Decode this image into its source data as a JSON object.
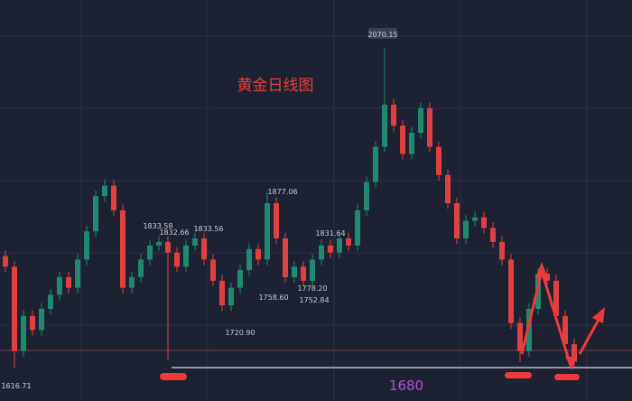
{
  "chart_data": {
    "type": "candlestick",
    "title": "黄金日线图",
    "open": [
      1775,
      1760,
      1640,
      1690,
      1670,
      1700,
      1720,
      1745,
      1730,
      1770,
      1810,
      1860,
      1875,
      1840,
      1730,
      1745,
      1770,
      1790,
      1795,
      1780,
      1760,
      1790,
      1800,
      1770,
      1740,
      1705,
      1730,
      1755,
      1785,
      1770,
      1850,
      1800,
      1745,
      1760,
      1740,
      1770,
      1790,
      1780,
      1800,
      1790,
      1840,
      1880,
      1930,
      1990,
      1960,
      1920,
      1950,
      1985,
      1930,
      1890,
      1850,
      1800,
      1825,
      1830,
      1815,
      1795,
      1770,
      1680,
      1640,
      1700,
      1750,
      1740,
      1690,
      1650
    ],
    "high": [
      1783,
      1768,
      1698,
      1698,
      1708,
      1728,
      1753,
      1753,
      1778,
      1818,
      1868,
      1884,
      1883,
      1848,
      1753,
      1778,
      1798,
      1803,
      1803,
      1788,
      1798,
      1808,
      1808,
      1778,
      1748,
      1738,
      1763,
      1793,
      1793,
      1867,
      1858,
      1808,
      1768,
      1768,
      1778,
      1798,
      1798,
      1808,
      1808,
      1848,
      1888,
      1938,
      2070.15,
      1998,
      1968,
      1958,
      1993,
      1993,
      1938,
      1898,
      1858,
      1833,
      1838,
      1838,
      1823,
      1803,
      1778,
      1688,
      1708,
      1758,
      1758,
      1748,
      1698,
      1658
    ],
    "low": [
      1752,
      1616.71,
      1632,
      1662,
      1662,
      1692,
      1712,
      1722,
      1722,
      1762,
      1802,
      1852,
      1832,
      1722,
      1722,
      1737,
      1762,
      1782,
      1628,
      1752,
      1752,
      1782,
      1762,
      1732,
      1697,
      1697,
      1722,
      1747,
      1762,
      1762,
      1792,
      1737,
      1737,
      1732,
      1732,
      1762,
      1772,
      1772,
      1782,
      1782,
      1832,
      1872,
      1922,
      1952,
      1912,
      1912,
      1942,
      1922,
      1882,
      1842,
      1792,
      1792,
      1817,
      1807,
      1787,
      1762,
      1672,
      1625,
      1632,
      1692,
      1732,
      1682,
      1642,
      1617
    ],
    "close": [
      1760,
      1640,
      1690,
      1670,
      1700,
      1720,
      1745,
      1730,
      1770,
      1810,
      1860,
      1875,
      1840,
      1730,
      1745,
      1770,
      1790,
      1795,
      1780,
      1760,
      1790,
      1800,
      1770,
      1740,
      1705,
      1730,
      1755,
      1785,
      1770,
      1850,
      1800,
      1745,
      1760,
      1740,
      1770,
      1790,
      1780,
      1800,
      1790,
      1840,
      1880,
      1930,
      1990,
      1960,
      1920,
      1950,
      1985,
      1930,
      1890,
      1850,
      1800,
      1825,
      1830,
      1815,
      1795,
      1770,
      1680,
      1640,
      1700,
      1750,
      1740,
      1690,
      1650,
      1625
    ],
    "up_color": "#1f8a70",
    "down_color": "#e0413f",
    "ylim": [
      1600,
      2100
    ],
    "annotations": [
      "2070.15",
      "1833.58",
      "1832.66",
      "1833.56",
      "1877.06",
      "1831.64",
      "1758.60",
      "1778.20",
      "1752.84",
      "1720.90",
      "1616.71"
    ],
    "support_label": "1680"
  }
}
